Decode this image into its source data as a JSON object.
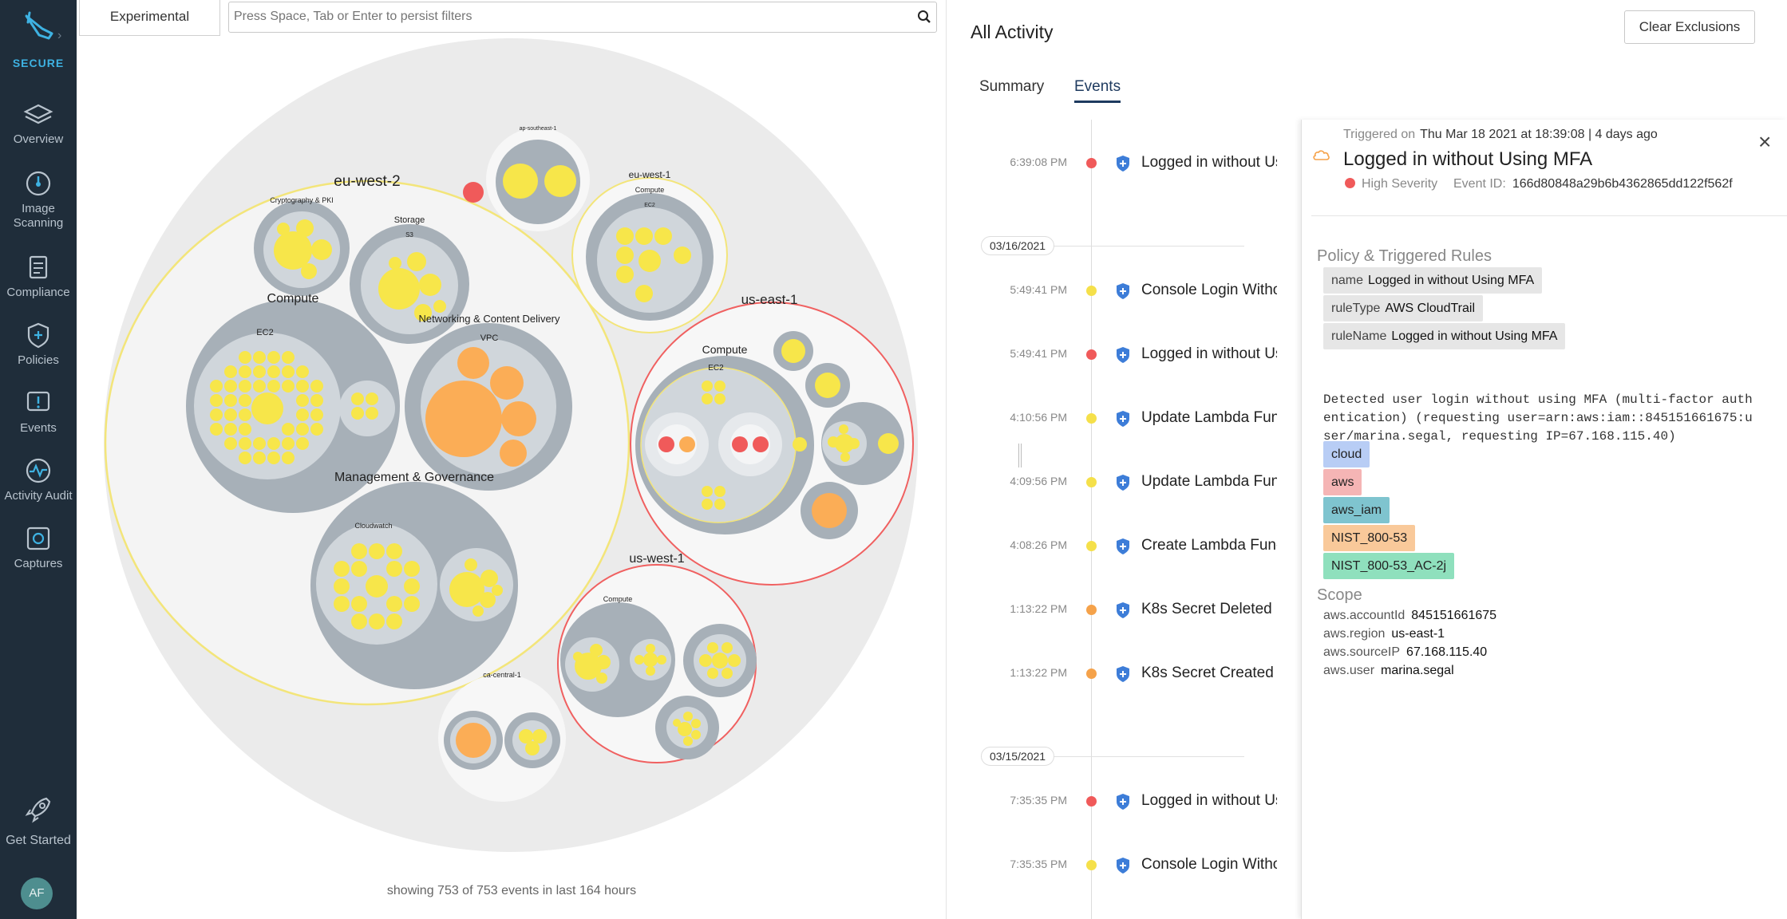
{
  "sidebar": {
    "product": "SECURE",
    "items": [
      {
        "label": "Overview",
        "icon": "layers-icon"
      },
      {
        "label": "Image Scanning",
        "icon": "scan-icon"
      },
      {
        "label": "Compliance",
        "icon": "clipboard-icon"
      },
      {
        "label": "Policies",
        "icon": "shield-plus-icon"
      },
      {
        "label": "Events",
        "icon": "alert-icon"
      },
      {
        "label": "Activity Audit",
        "icon": "activity-icon"
      },
      {
        "label": "Captures",
        "icon": "capture-icon"
      }
    ],
    "get_started": "Get Started",
    "avatar": "AF"
  },
  "left": {
    "experimental_tab": "Experimental",
    "filter_placeholder": "Press Space, Tab or Enter to persist filters",
    "showing": "showing 753 of 753 events in last 164 hours"
  },
  "bubble_labels": {
    "eu_west_2": "eu-west-2",
    "ap_southeast_1": "ap-southeast-1",
    "eu_west_1": "eu-west-1",
    "compute": "Compute",
    "ec2": "EC2",
    "crypto": "Cryptography & PKI",
    "storage": "Storage",
    "s3": "S3",
    "networking": "Networking & Content Delivery",
    "vpc": "VPC",
    "mgmt": "Management & Governance",
    "cloudwatch": "Cloudwatch",
    "us_east_1": "us-east-1",
    "us_west_1": "us-west-1",
    "ca_central_1": "ca-central-1"
  },
  "right": {
    "title": "All Activity",
    "clear_exclusions": "Clear Exclusions",
    "tabs": [
      {
        "label": "Summary",
        "active": false
      },
      {
        "label": "Events",
        "active": true
      }
    ],
    "dates": [
      "03/16/2021",
      "03/15/2021"
    ],
    "events": [
      {
        "time": "6:39:08 PM",
        "name": "Logged in without Using MFA",
        "severity": "high"
      },
      {
        "time": "5:49:41 PM",
        "name": "Console Login Without MFA",
        "severity": "low"
      },
      {
        "time": "5:49:41 PM",
        "name": "Logged in without Using MFA",
        "severity": "high"
      },
      {
        "time": "4:10:56 PM",
        "name": "Update Lambda Function",
        "severity": "low"
      },
      {
        "time": "4:09:56 PM",
        "name": "Update Lambda Function",
        "severity": "low"
      },
      {
        "time": "4:08:26 PM",
        "name": "Create Lambda Function",
        "severity": "low"
      },
      {
        "time": "1:13:22 PM",
        "name": "K8s Secret Deleted",
        "severity": "medium"
      },
      {
        "time": "1:13:22 PM",
        "name": "K8s Secret Created",
        "severity": "medium"
      },
      {
        "time": "7:35:35 PM",
        "name": "Logged in without Using MFA",
        "severity": "high"
      },
      {
        "time": "7:35:35 PM",
        "name": "Console Login Without MFA",
        "severity": "low"
      }
    ],
    "colors": {
      "high": "#f05a5a",
      "medium": "#f5a24a",
      "low": "#f5e04a",
      "shield": "#3d7dd8"
    }
  },
  "detail": {
    "triggered_label": "Triggered on",
    "triggered_value": "Thu Mar 18 2021 at 18:39:08 | 4 days ago",
    "title": "Logged in without Using MFA",
    "severity": "High Severity",
    "event_id_label": "Event ID:",
    "event_id": "166d80848a29b6b4362865dd122f562f",
    "policy_heading": "Policy & Triggered Rules",
    "rules": [
      {
        "key": "name",
        "value": "Logged in without Using MFA"
      },
      {
        "key": "ruleType",
        "value": "AWS CloudTrail"
      },
      {
        "key": "ruleName",
        "value": "Logged in without Using MFA"
      }
    ],
    "description": "Detected user login without using MFA (multi-factor auth\nentication) (requesting user=arn:aws:iam::845151661675:u\nser/marina.segal, requesting IP=67.168.115.40)",
    "tags": [
      {
        "label": "cloud",
        "color": "#b8cdf5"
      },
      {
        "label": "aws",
        "color": "#f5b5b5"
      },
      {
        "label": "aws_iam",
        "color": "#7fc4cf"
      },
      {
        "label": "NIST_800-53",
        "color": "#f9c99a"
      },
      {
        "label": "NIST_800-53_AC-2j",
        "color": "#8fe0bd"
      }
    ],
    "scope_heading": "Scope",
    "scope": [
      {
        "key": "aws.accountId",
        "value": "845151661675"
      },
      {
        "key": "aws.region",
        "value": "us-east-1"
      },
      {
        "key": "aws.sourceIP",
        "value": "67.168.115.40"
      },
      {
        "key": "aws.user",
        "value": "marina.segal"
      }
    ]
  }
}
